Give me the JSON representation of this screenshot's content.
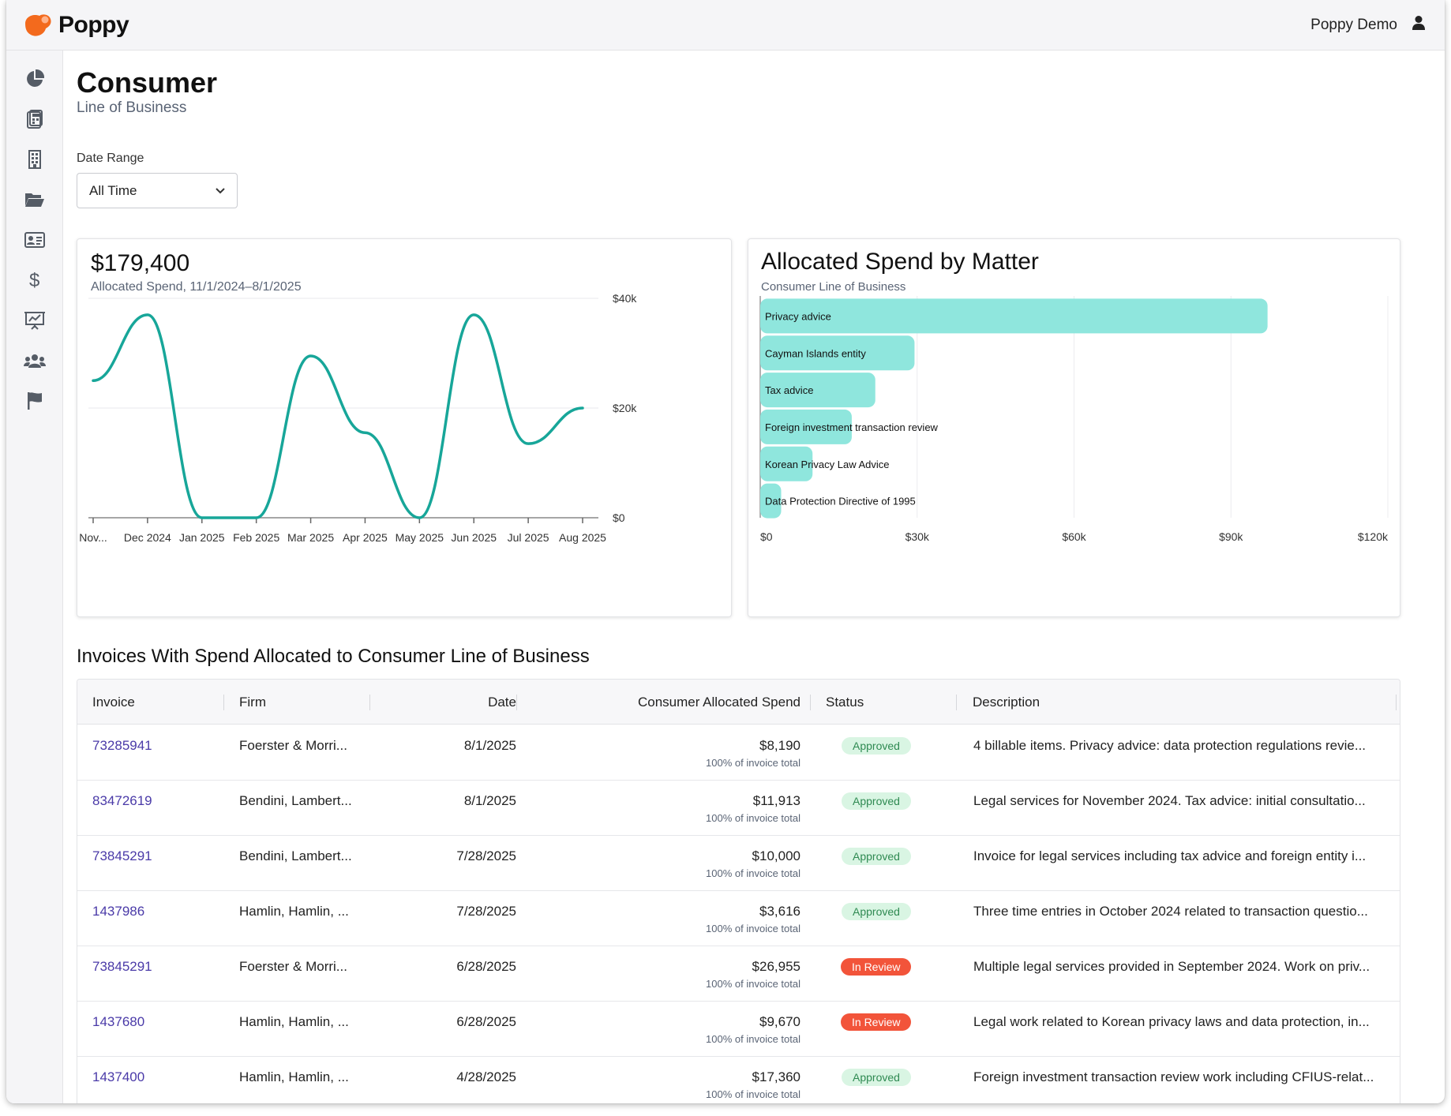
{
  "app": {
    "name": "Poppy",
    "user_name": "Poppy Demo"
  },
  "sidebar": {
    "items": [
      {
        "icon": "pie-chart-icon"
      },
      {
        "icon": "calculator-document-icon"
      },
      {
        "icon": "building-icon"
      },
      {
        "icon": "folder-open-icon"
      },
      {
        "icon": "id-card-icon"
      },
      {
        "icon": "dollar-sign-icon"
      },
      {
        "icon": "presentation-chart-icon"
      },
      {
        "icon": "users-icon"
      },
      {
        "icon": "flag-icon"
      }
    ]
  },
  "page": {
    "title": "Consumer",
    "subtitle": "Line of Business"
  },
  "filters": {
    "date_range_label": "Date Range",
    "date_range_value": "All Time"
  },
  "spend_card": {
    "total": "$179,400",
    "caption": "Allocated Spend, 11/1/2024–8/1/2025"
  },
  "matter_card": {
    "title": "Allocated Spend by Matter",
    "subtitle": "Consumer Line of Business"
  },
  "colors": {
    "accent": "#f36a1d",
    "line": "#17a699",
    "bar": "#8fe6dd",
    "link": "#4a3aa8",
    "review": "#f2543a",
    "approved_bg": "#d9f5e3"
  },
  "chart_data": [
    {
      "type": "line",
      "x": [
        "Nov...",
        "Dec 2024",
        "Jan 2025",
        "Feb 2025",
        "Mar 2025",
        "Apr 2025",
        "May 2025",
        "Jun 2025",
        "Jul 2025",
        "Aug 2025"
      ],
      "series": [
        {
          "values": [
            25000,
            37000,
            0,
            0,
            29500,
            15500,
            0,
            37000,
            13500,
            20000
          ]
        }
      ],
      "y_ticks": [
        "$0",
        "$20k",
        "$40k"
      ],
      "ylim": [
        0,
        40000
      ],
      "grid": true
    },
    {
      "type": "bar",
      "orientation": "horizontal",
      "categories": [
        "Privacy advice",
        "Cayman Islands entity",
        "Tax advice",
        "Foreign investment transaction review",
        "Korean Privacy Law Advice",
        "Data Protection Directive of 1995"
      ],
      "values": [
        97000,
        29500,
        22000,
        17500,
        10000,
        4000
      ],
      "x_ticks": [
        "$0",
        "$30k",
        "$60k",
        "$90k",
        "$120k"
      ],
      "xlim": [
        0,
        120000
      ],
      "grid": true
    }
  ],
  "invoices": {
    "title": "Invoices With Spend Allocated to Consumer Line of Business",
    "columns": [
      "Invoice",
      "Firm",
      "Date",
      "Consumer Allocated Spend",
      "Status",
      "Description"
    ],
    "rows": [
      {
        "invoice": "73285941",
        "firm": "Foerster & Morri...",
        "date": "8/1/2025",
        "spend": "$8,190",
        "note": "100% of invoice total",
        "status": "Approved",
        "description": "4 billable items. Privacy advice: data protection regulations revie..."
      },
      {
        "invoice": "83472619",
        "firm": "Bendini, Lambert...",
        "date": "8/1/2025",
        "spend": "$11,913",
        "note": "100% of invoice total",
        "status": "Approved",
        "description": "Legal services for November 2024. Tax advice: initial consultatio..."
      },
      {
        "invoice": "73845291",
        "firm": "Bendini, Lambert...",
        "date": "7/28/2025",
        "spend": "$10,000",
        "note": "100% of invoice total",
        "status": "Approved",
        "description": "Invoice for legal services including tax advice and foreign entity i..."
      },
      {
        "invoice": "1437986",
        "firm": "Hamlin, Hamlin, ...",
        "date": "7/28/2025",
        "spend": "$3,616",
        "note": "100% of invoice total",
        "status": "Approved",
        "description": "Three time entries in October 2024 related to transaction questio..."
      },
      {
        "invoice": "73845291",
        "firm": "Foerster & Morri...",
        "date": "6/28/2025",
        "spend": "$26,955",
        "note": "100% of invoice total",
        "status": "In Review",
        "description": "Multiple legal services provided in September 2024. Work on priv..."
      },
      {
        "invoice": "1437680",
        "firm": "Hamlin, Hamlin, ...",
        "date": "6/28/2025",
        "spend": "$9,670",
        "note": "100% of invoice total",
        "status": "In Review",
        "description": "Legal work related to Korean privacy laws and data protection, in..."
      },
      {
        "invoice": "1437400",
        "firm": "Hamlin, Hamlin, ...",
        "date": "4/28/2025",
        "spend": "$17,360",
        "note": "100% of invoice total",
        "status": "Approved",
        "description": "Foreign investment transaction review work including CFIUS-relat..."
      }
    ]
  }
}
